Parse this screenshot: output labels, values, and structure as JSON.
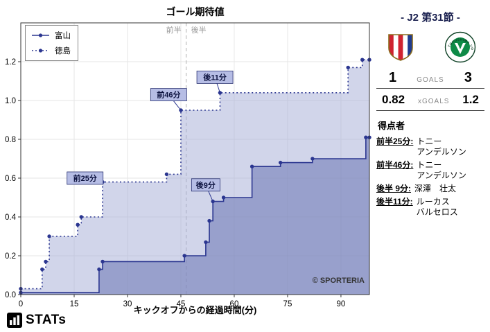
{
  "title": "ゴール期待値",
  "watermark": "© SPORTERIA",
  "footer": {
    "brand": "STATs"
  },
  "chart_data": {
    "type": "line",
    "subtype": "step-cumulative-xg",
    "title": "ゴール期待値",
    "xlabel": "キックオフからの経過時間(分)",
    "xlim": [
      0,
      98
    ],
    "ylim": [
      0,
      1.4
    ],
    "xticks": [
      0,
      15,
      30,
      45,
      60,
      75,
      90
    ],
    "yticks": [
      "0.0",
      "0.2",
      "0.4",
      "0.6",
      "0.8",
      "1.0",
      "1.2"
    ],
    "grid": true,
    "legend_position": "upper-left",
    "halftime": {
      "x": 46.5,
      "first_half_label": "前半",
      "second_half_label": "後半"
    },
    "series": [
      {
        "name": "富山",
        "style": "solid",
        "color": "#2b3690",
        "fill": "rgba(106,116,178,0.55)",
        "final_xg": 0.82,
        "points": [
          [
            0,
            0.01
          ],
          [
            22,
            0.13
          ],
          [
            23,
            0.17
          ],
          [
            46,
            0.2
          ],
          [
            52,
            0.27
          ],
          [
            53,
            0.38
          ],
          [
            54,
            0.48
          ],
          [
            57,
            0.5
          ],
          [
            65,
            0.66
          ],
          [
            73,
            0.68
          ],
          [
            82,
            0.7
          ],
          [
            97,
            0.81
          ]
        ]
      },
      {
        "name": "徳島",
        "style": "dotted",
        "color": "#2b3690",
        "fill": "rgba(163,171,214,0.50)",
        "final_xg": 1.2,
        "points": [
          [
            0,
            0.03
          ],
          [
            6,
            0.13
          ],
          [
            7,
            0.17
          ],
          [
            8,
            0.3
          ],
          [
            16,
            0.36
          ],
          [
            17,
            0.4
          ],
          [
            23,
            0.58
          ],
          [
            41,
            0.62
          ],
          [
            45,
            0.95
          ],
          [
            56,
            1.04
          ],
          [
            92,
            1.17
          ],
          [
            96,
            1.21
          ]
        ]
      }
    ],
    "annotations": [
      {
        "text": "前25分",
        "target_x": 23,
        "target_y": 0.58,
        "box_x": 13,
        "box_y": 0.6
      },
      {
        "text": "前46分",
        "target_x": 45,
        "target_y": 0.95,
        "box_x": 36.5,
        "box_y": 1.03
      },
      {
        "text": "後11分",
        "target_x": 56,
        "target_y": 1.04,
        "box_x": 49.5,
        "box_y": 1.12
      },
      {
        "text": "後9分",
        "target_x": 54,
        "target_y": 0.48,
        "box_x": 48,
        "box_y": 0.565
      }
    ]
  },
  "panel": {
    "round_title": "- J2 第31節 -",
    "home_logo": "kataller-toyama",
    "away_logo": "tokushima-vortis",
    "away_logo_text": "TOKUSHIMA VORTIS",
    "goals": {
      "home": "1",
      "label": "GOALS",
      "away": "3"
    },
    "xgoals": {
      "home": "0.82",
      "label": "xGOALS",
      "away": "1.2"
    },
    "scorers_title": "得点者",
    "scorers": [
      {
        "time": "前半25分:",
        "name_lines": [
          "トニー",
          "アンデルソン"
        ]
      },
      {
        "time": "前半46分:",
        "name_lines": [
          "トニー",
          "アンデルソン"
        ]
      },
      {
        "time": "後半 9分:",
        "name_lines": [
          "深澤　壮太"
        ]
      },
      {
        "time": "後半11分:",
        "name_lines": [
          "ルーカス",
          "バルセロス"
        ]
      }
    ]
  }
}
